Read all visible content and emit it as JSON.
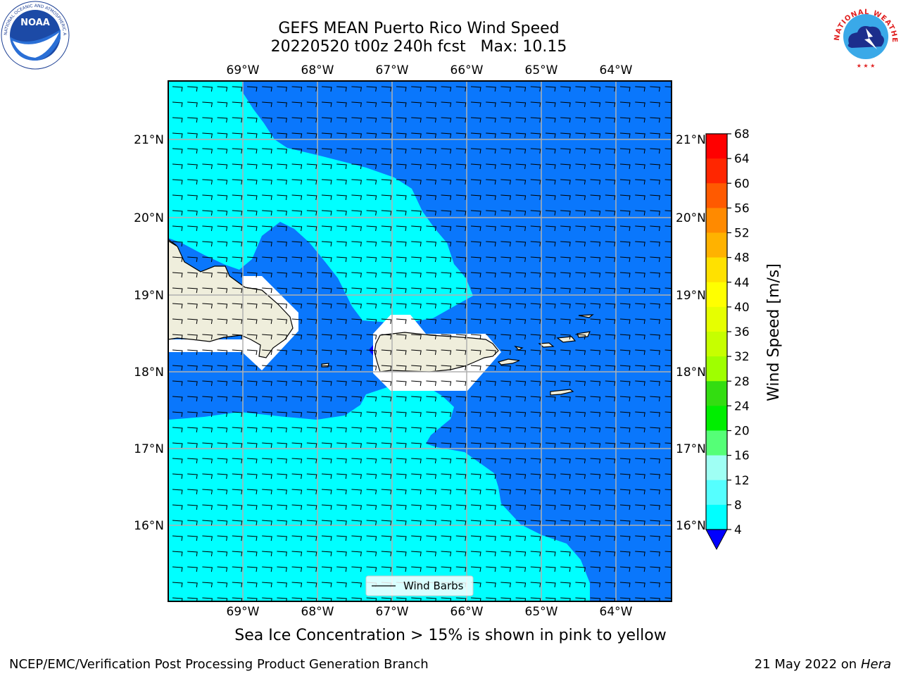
{
  "title": {
    "line1": "GEFS MEAN Puerto Rico Wind Speed",
    "line2": "20220520 t00z 240h fcst   Max: 10.15"
  },
  "map": {
    "lon_labels": [
      "69°W",
      "68°W",
      "67°W",
      "66°W",
      "65°W",
      "64°W"
    ],
    "lat_labels": [
      "21°N",
      "20°N",
      "19°N",
      "18°N",
      "17°N",
      "16°N"
    ],
    "legend_label": "Wind Barbs",
    "colors": {
      "light": "#00ffff",
      "dark": "#0a77fc",
      "land": "#efeedc",
      "grid": "#b0b0b0"
    }
  },
  "colorbar": {
    "label": "Wind Speed [m/s]",
    "ticks": [
      "68",
      "64",
      "60",
      "56",
      "52",
      "48",
      "44",
      "40",
      "36",
      "32",
      "28",
      "24",
      "20",
      "16",
      "12",
      "8",
      "4"
    ],
    "colors": [
      "#ff0000",
      "#ff2600",
      "#ff5a00",
      "#ff8a00",
      "#ffb200",
      "#ffe100",
      "#ffff00",
      "#e6ff00",
      "#c6ff00",
      "#9fff00",
      "#33dd11",
      "#00ee00",
      "#55ff77",
      "#9ffff4",
      "#55ffff",
      "#00ffff",
      "#0a77fc"
    ],
    "under_color": "#0000ff"
  },
  "footer": {
    "note": "Sea Ice Concentration > 15% is shown in pink to yellow",
    "credit_left": "NCEP/EMC/Verification Post Processing Product Generation Branch",
    "credit_right_date": "21 May 2022 on",
    "credit_right_host": "Hera"
  },
  "logos": {
    "noaa": "NOAA",
    "nws_text": "NATIONAL WEATHER SERVICE",
    "noaa_ring": "NATIONAL OCEANIC AND ATMOSPHERIC ADMINISTRATION · U.S. DEPARTMENT OF COMMERCE"
  }
}
